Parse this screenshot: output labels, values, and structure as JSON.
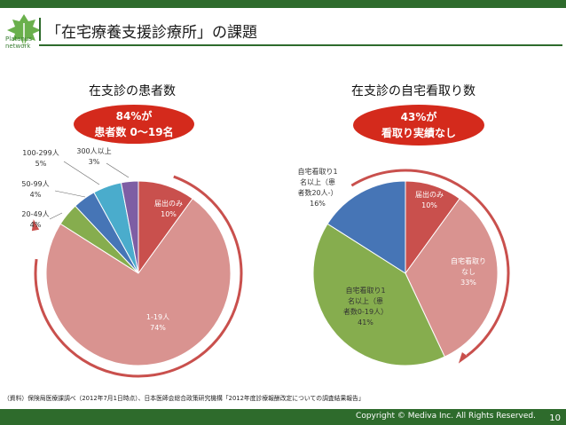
{
  "header": {
    "title": "「在宅療養支援診療所」の課題",
    "logo_text": "Platanus network"
  },
  "chart_data": [
    {
      "type": "pie",
      "title": "在支診の患者数",
      "badge": [
        "84%が",
        "患者数 0〜19名"
      ],
      "slices": [
        {
          "label": "届出のみ",
          "value": 10,
          "pct": "10%",
          "color": "#c9504d"
        },
        {
          "label": "1-19人",
          "value": 74,
          "pct": "74%",
          "color": "#d99390"
        },
        {
          "label": "20-49人",
          "value": 4,
          "pct": "4%",
          "color": "#86ad4e"
        },
        {
          "label": "50-99人",
          "value": 4,
          "pct": "4%",
          "color": "#4675b6"
        },
        {
          "label": "100-299人",
          "value": 5,
          "pct": "5%",
          "color": "#4aaccc"
        },
        {
          "label": "300人以上",
          "value": 3,
          "pct": "3%",
          "color": "#7e5ea4"
        }
      ]
    },
    {
      "type": "pie",
      "title": "在支診の自宅看取り数",
      "badge": [
        "43%が",
        "看取り実績なし"
      ],
      "slices": [
        {
          "label": "届出のみ",
          "value": 10,
          "pct": "10%",
          "color": "#c9504d"
        },
        {
          "label": "自宅看取りなし",
          "value": 33,
          "pct": "33%",
          "color": "#d99390"
        },
        {
          "label": "自宅看取り1名以上（患者数0-19人）",
          "value": 41,
          "pct": "41%",
          "color": "#86ad4e"
        },
        {
          "label": "自宅看取り1名以上（患者数20人-）",
          "value": 16,
          "pct": "16%",
          "color": "#4675b6"
        }
      ]
    }
  ],
  "labels": {
    "c1_s0": [
      "届出のみ",
      "10%"
    ],
    "c1_s1": [
      "1-19人",
      "74%"
    ],
    "c1_s2": [
      "20-49人",
      "4%"
    ],
    "c1_s3": [
      "50-99人",
      "4%"
    ],
    "c1_s4": [
      "100-299人",
      "5%"
    ],
    "c1_s5": [
      "300人以上",
      "3%"
    ],
    "c2_s0": [
      "届出のみ",
      "10%"
    ],
    "c2_s1": [
      "自宅看取り",
      "なし",
      "33%"
    ],
    "c2_s2": [
      "自宅看取り1",
      "名以上（患",
      "者数0-19人）",
      "41%"
    ],
    "c2_s3": [
      "自宅看取り1",
      "名以上（患",
      "者数20人-）",
      "16%"
    ]
  },
  "source": "（資料）保険局医療課調べ（2012年7月1日時点）、日本医師会総合政策研究機構「2012年度診療報酬改定についての調査結果報告」",
  "footer": {
    "copyright": "Copyright © Mediva Inc. All Rights Reserved.",
    "page": "10"
  },
  "arrow_color": "#c9504d"
}
